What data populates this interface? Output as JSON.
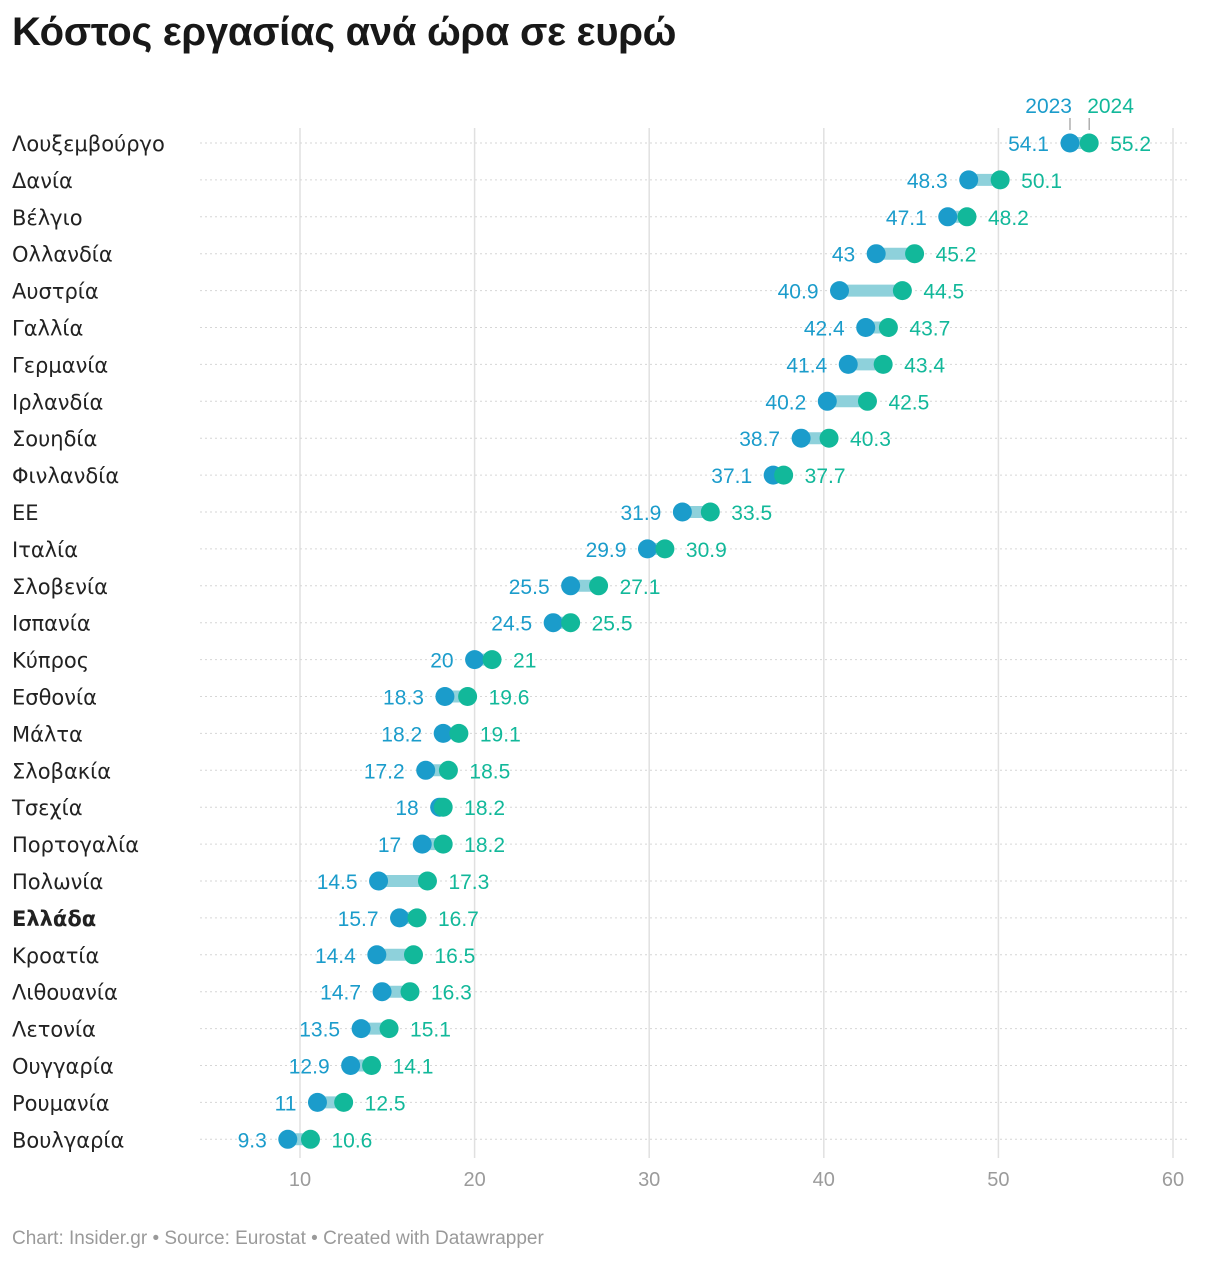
{
  "title": "Κόστος εργασίας ανά ώρα σε ευρώ",
  "footer": "Chart: Insider.gr • Source: Eurostat • Created with Datawrapper",
  "colors": {
    "series_2023": "#1b9ccb",
    "series_2024": "#12b89a",
    "connector": "#8ed1db",
    "grid": "#e0e0e0",
    "row_rule": "#d6d6d6",
    "text": "#222222",
    "muted": "#9b9b9b"
  },
  "chart_data": {
    "type": "dot-range",
    "xlim": [
      5,
      60
    ],
    "xticks": [
      10,
      20,
      30,
      40,
      50,
      60
    ],
    "grid": true,
    "legend_position": "top-right",
    "highlight": "Ελλάδα",
    "series": [
      {
        "name": "2023",
        "values": [
          54.1,
          48.3,
          47.1,
          43,
          40.9,
          42.4,
          41.4,
          40.2,
          38.7,
          37.1,
          31.9,
          29.9,
          25.5,
          24.5,
          20,
          18.3,
          18.2,
          17.2,
          18,
          17,
          14.5,
          15.7,
          14.4,
          14.7,
          13.5,
          12.9,
          11,
          9.3
        ]
      },
      {
        "name": "2024",
        "values": [
          55.2,
          50.1,
          48.2,
          45.2,
          44.5,
          43.7,
          43.4,
          42.5,
          40.3,
          37.7,
          33.5,
          30.9,
          27.1,
          25.5,
          21,
          19.6,
          19.1,
          18.5,
          18.2,
          18.2,
          17.3,
          16.7,
          16.5,
          16.3,
          15.1,
          14.1,
          12.5,
          10.6
        ]
      }
    ],
    "categories": [
      "Λουξεμβούργο",
      "Δανία",
      "Βέλγιο",
      "Ολλανδία",
      "Αυστρία",
      "Γαλλία",
      "Γερμανία",
      "Ιρλανδία",
      "Σουηδία",
      "Φινλανδία",
      "ΕΕ",
      "Ιταλία",
      "Σλοβενία",
      "Ισπανία",
      "Κύπρος",
      "Εσθονία",
      "Μάλτα",
      "Σλοβακία",
      "Τσεχία",
      "Πορτογαλία",
      "Πολωνία",
      "Ελλάδα",
      "Κροατία",
      "Λιθουανία",
      "Λετονία",
      "Ουγγαρία",
      "Ρουμανία",
      "Βουλγαρία"
    ]
  }
}
